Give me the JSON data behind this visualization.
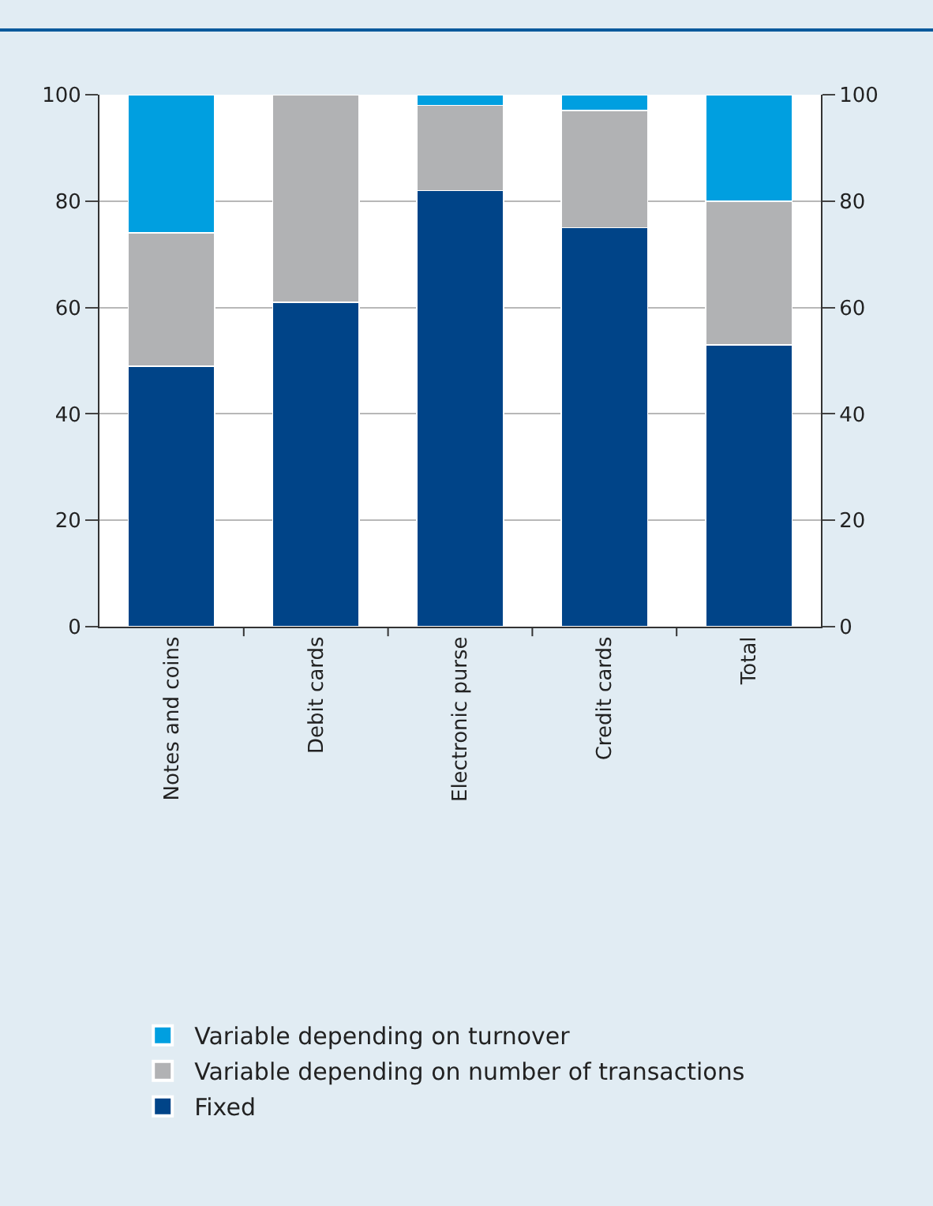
{
  "chart_data": {
    "type": "bar",
    "stacked": true,
    "categories": [
      "Notes and coins",
      "Debit cards",
      "Electronic purse",
      "Credit cards",
      "Total"
    ],
    "series": [
      {
        "name": "Fixed",
        "color": "#004488",
        "values": [
          49,
          61,
          82,
          75,
          53
        ]
      },
      {
        "name": "Variable depending on number of transactions",
        "color": "#b1b2b4",
        "values": [
          25,
          39,
          16,
          22,
          27
        ]
      },
      {
        "name": "Variable depending on turnover",
        "color": "#009fe0",
        "values": [
          26,
          0,
          2,
          3,
          20
        ]
      }
    ],
    "ylim": [
      0,
      100
    ],
    "yticks": [
      0,
      20,
      40,
      60,
      80,
      100
    ],
    "y2lim": [
      0,
      100
    ],
    "y2ticks": [
      0,
      20,
      40,
      60,
      80,
      100
    ],
    "grid": "y",
    "legend": "bottom"
  }
}
